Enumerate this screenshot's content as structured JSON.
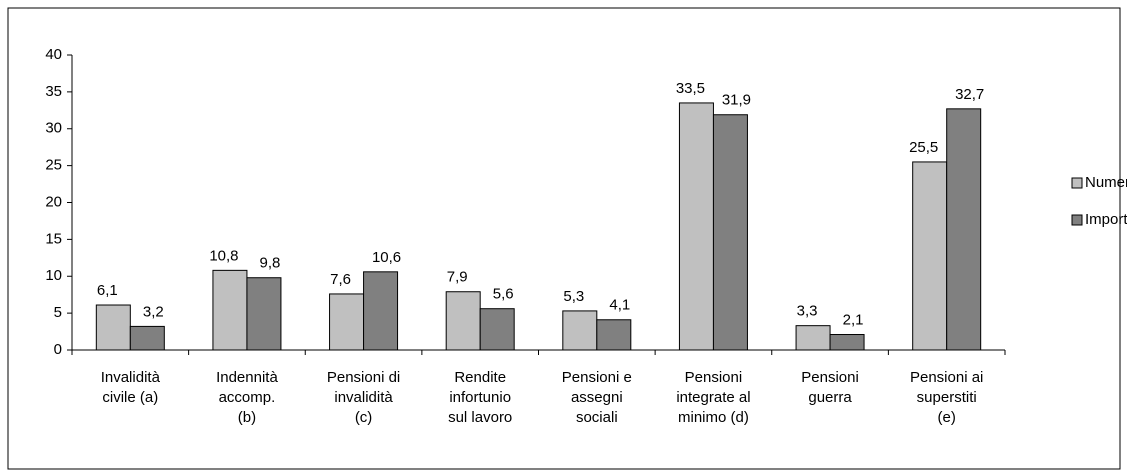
{
  "chart_data": {
    "type": "bar",
    "categories": [
      "Invalidità\ncivile (a)",
      "Indennità\naccomp.\n(b)",
      "Pensioni di\ninvalidità\n(c)",
      "Rendite\ninfortunio\nsul lavoro",
      "Pensioni e\nassegni\nsociali",
      "Pensioni\nintegrate al\nminimo (d)",
      "Pensioni\nguerra",
      "Pensioni ai\nsuperstiti\n(e)"
    ],
    "series": [
      {
        "name": "Numero",
        "color": "#c0c0c0",
        "values": [
          6.1,
          10.8,
          7.6,
          7.9,
          5.3,
          33.5,
          3.3,
          25.5
        ],
        "value_labels": [
          "6,1",
          "10,8",
          "7,6",
          "7,9",
          "5,3",
          "33,5",
          "3,3",
          "25,5"
        ]
      },
      {
        "name": "Importo",
        "color": "#808080",
        "values": [
          3.2,
          9.8,
          10.6,
          5.6,
          4.1,
          31.9,
          2.1,
          32.7
        ],
        "value_labels": [
          "3,2",
          "9,8",
          "10,6",
          "5,6",
          "4,1",
          "31,9",
          "2,1",
          "32,7"
        ]
      }
    ],
    "ylim": [
      0,
      40
    ],
    "yticks": [
      0,
      5,
      10,
      15,
      20,
      25,
      30,
      35,
      40
    ],
    "grid": false,
    "legend": "right"
  }
}
